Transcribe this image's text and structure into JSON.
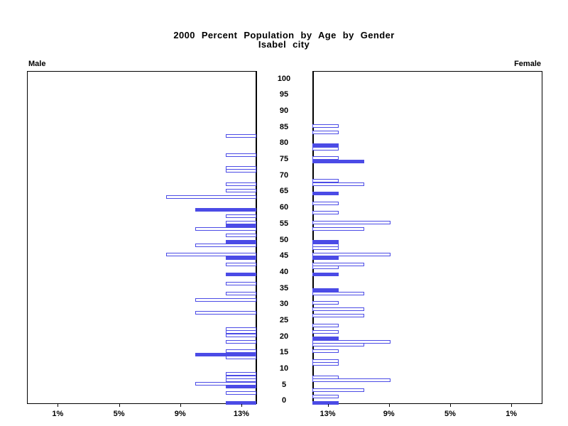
{
  "title": {
    "line1": "2000 Percent Population by Age by Gender",
    "line2": "Isabel city"
  },
  "panels": {
    "left_label": "Male",
    "right_label": "Female"
  },
  "colors": {
    "bar_blue": "#4B4BE6",
    "axis_black": "#000000",
    "background": "#FFFFFF"
  },
  "chart_data": {
    "type": "bar",
    "subtype": "population-pyramid",
    "title": "2000 Percent Population by Age by Gender",
    "subtitle": "Isabel city",
    "orientation": "horizontal, male bars extend left, female bars extend right",
    "grid": false,
    "legend": false,
    "bar_styles": {
      "hollow": "white fill with blue outline (non-highlighted single-year age)",
      "filled": "solid blue (highlighted age, multiples of 5 age-heaping)"
    },
    "age_axis": {
      "min": 0,
      "max": 100,
      "tick_step": 5,
      "tick_labels": [
        "100",
        "95",
        "90",
        "85",
        "80",
        "75",
        "70",
        "65",
        "60",
        "55",
        "50",
        "45",
        "40",
        "35",
        "30",
        "25",
        "20",
        "15",
        "10",
        "5",
        "0"
      ]
    },
    "x_axis": {
      "unit": "percent",
      "xlim": [
        0,
        15
      ],
      "male_tick_labels": [
        "13%",
        "9%",
        "5%",
        "1%"
      ],
      "female_tick_labels": [
        "1%",
        "5%",
        "9%",
        "13%"
      ],
      "tick_values": [
        13,
        9,
        5,
        1
      ]
    },
    "male": [
      {
        "age": 83,
        "percent": 2.0,
        "filled": false
      },
      {
        "age": 77,
        "percent": 2.0,
        "filled": false
      },
      {
        "age": 73,
        "percent": 2.0,
        "filled": false
      },
      {
        "age": 72,
        "percent": 2.0,
        "filled": false
      },
      {
        "age": 68,
        "percent": 2.0,
        "filled": false
      },
      {
        "age": 66,
        "percent": 2.0,
        "filled": false
      },
      {
        "age": 64,
        "percent": 5.9,
        "filled": false
      },
      {
        "age": 60,
        "percent": 4.0,
        "filled": true
      },
      {
        "age": 58,
        "percent": 2.0,
        "filled": false
      },
      {
        "age": 56,
        "percent": 2.0,
        "filled": false
      },
      {
        "age": 55,
        "percent": 2.0,
        "filled": true
      },
      {
        "age": 54,
        "percent": 4.0,
        "filled": false
      },
      {
        "age": 52,
        "percent": 2.0,
        "filled": false
      },
      {
        "age": 50,
        "percent": 2.0,
        "filled": true
      },
      {
        "age": 49,
        "percent": 4.0,
        "filled": false
      },
      {
        "age": 46,
        "percent": 5.9,
        "filled": false
      },
      {
        "age": 45,
        "percent": 2.0,
        "filled": true
      },
      {
        "age": 43,
        "percent": 2.0,
        "filled": false
      },
      {
        "age": 40,
        "percent": 2.0,
        "filled": true
      },
      {
        "age": 37,
        "percent": 2.0,
        "filled": false
      },
      {
        "age": 34,
        "percent": 2.0,
        "filled": false
      },
      {
        "age": 32,
        "percent": 4.0,
        "filled": false
      },
      {
        "age": 28,
        "percent": 4.0,
        "filled": false
      },
      {
        "age": 23,
        "percent": 2.0,
        "filled": false
      },
      {
        "age": 22,
        "percent": 2.0,
        "filled": false
      },
      {
        "age": 21,
        "percent": 2.0,
        "filled": false
      },
      {
        "age": 19,
        "percent": 2.0,
        "filled": false
      },
      {
        "age": 16,
        "percent": 2.0,
        "filled": false
      },
      {
        "age": 15,
        "percent": 4.0,
        "filled": true
      },
      {
        "age": 14,
        "percent": 2.0,
        "filled": false
      },
      {
        "age": 9,
        "percent": 2.0,
        "filled": false
      },
      {
        "age": 8,
        "percent": 2.0,
        "filled": false
      },
      {
        "age": 7,
        "percent": 2.0,
        "filled": false
      },
      {
        "age": 6,
        "percent": 4.0,
        "filled": false
      },
      {
        "age": 5,
        "percent": 2.0,
        "filled": true
      },
      {
        "age": 3,
        "percent": 2.0,
        "filled": false
      },
      {
        "age": 0,
        "percent": 2.0,
        "filled": true
      }
    ],
    "female": [
      {
        "age": 86,
        "percent": 1.7,
        "filled": false
      },
      {
        "age": 84,
        "percent": 1.7,
        "filled": false
      },
      {
        "age": 80,
        "percent": 1.7,
        "filled": true
      },
      {
        "age": 79,
        "percent": 1.7,
        "filled": false
      },
      {
        "age": 76,
        "percent": 1.7,
        "filled": false
      },
      {
        "age": 75,
        "percent": 3.4,
        "filled": true
      },
      {
        "age": 69,
        "percent": 1.7,
        "filled": false
      },
      {
        "age": 68,
        "percent": 3.4,
        "filled": false
      },
      {
        "age": 65,
        "percent": 1.7,
        "filled": true
      },
      {
        "age": 62,
        "percent": 1.7,
        "filled": false
      },
      {
        "age": 59,
        "percent": 1.7,
        "filled": false
      },
      {
        "age": 56,
        "percent": 5.1,
        "filled": false
      },
      {
        "age": 54,
        "percent": 3.4,
        "filled": false
      },
      {
        "age": 50,
        "percent": 1.7,
        "filled": true
      },
      {
        "age": 49,
        "percent": 1.7,
        "filled": false
      },
      {
        "age": 48,
        "percent": 1.7,
        "filled": false
      },
      {
        "age": 46,
        "percent": 5.1,
        "filled": false
      },
      {
        "age": 45,
        "percent": 1.7,
        "filled": true
      },
      {
        "age": 43,
        "percent": 3.4,
        "filled": false
      },
      {
        "age": 42,
        "percent": 1.7,
        "filled": false
      },
      {
        "age": 40,
        "percent": 1.7,
        "filled": true
      },
      {
        "age": 35,
        "percent": 1.7,
        "filled": true
      },
      {
        "age": 34,
        "percent": 3.4,
        "filled": false
      },
      {
        "age": 31,
        "percent": 1.7,
        "filled": false
      },
      {
        "age": 29,
        "percent": 3.4,
        "filled": false
      },
      {
        "age": 27,
        "percent": 3.4,
        "filled": false
      },
      {
        "age": 24,
        "percent": 1.7,
        "filled": false
      },
      {
        "age": 22,
        "percent": 1.7,
        "filled": false
      },
      {
        "age": 20,
        "percent": 1.7,
        "filled": true
      },
      {
        "age": 19,
        "percent": 5.1,
        "filled": false
      },
      {
        "age": 18,
        "percent": 3.4,
        "filled": false
      },
      {
        "age": 16,
        "percent": 1.7,
        "filled": false
      },
      {
        "age": 13,
        "percent": 1.7,
        "filled": false
      },
      {
        "age": 12,
        "percent": 1.7,
        "filled": false
      },
      {
        "age": 8,
        "percent": 1.7,
        "filled": false
      },
      {
        "age": 7,
        "percent": 5.1,
        "filled": false
      },
      {
        "age": 4,
        "percent": 3.4,
        "filled": false
      },
      {
        "age": 2,
        "percent": 1.7,
        "filled": false
      },
      {
        "age": 0,
        "percent": 1.7,
        "filled": true
      }
    ]
  }
}
